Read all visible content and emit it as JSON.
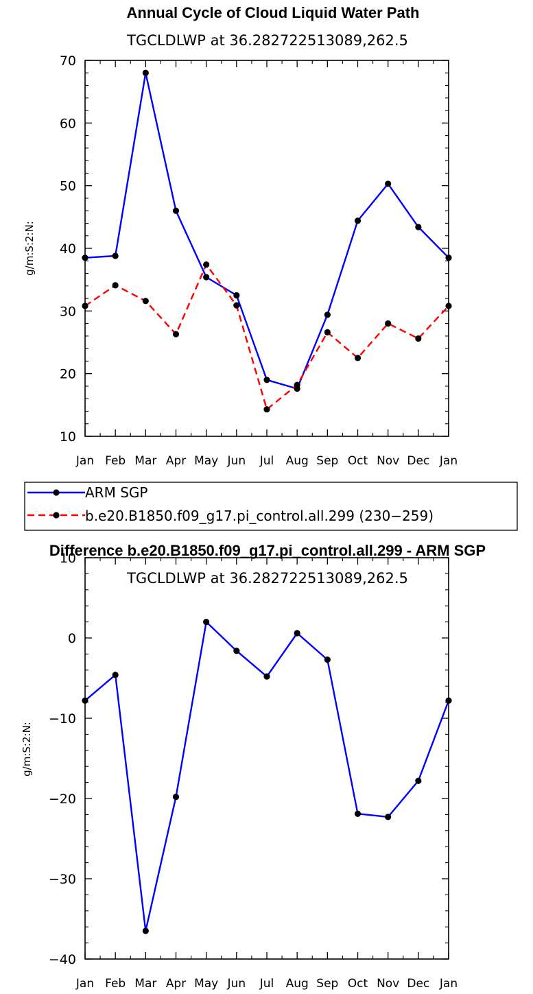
{
  "chart_data": [
    {
      "type": "line",
      "title": "Annual Cycle of Cloud Liquid Water Path",
      "subtitle": "TGCLDLWP  at  36.282722513089,262.5",
      "xlabel": "",
      "ylabel": "g/m:S:2:N:",
      "categories": [
        "Jan",
        "Feb",
        "Mar",
        "Apr",
        "May",
        "Jun",
        "Jul",
        "Aug",
        "Sep",
        "Oct",
        "Nov",
        "Dec",
        "Jan"
      ],
      "ylim": [
        10,
        70
      ],
      "yticks": [
        "10",
        "20",
        "30",
        "40",
        "50",
        "60",
        "70"
      ],
      "series": [
        {
          "name": "ARM SGP",
          "color": "#0000ff",
          "dash": "solid",
          "values": [
            38.5,
            38.8,
            68.0,
            46.0,
            35.4,
            32.5,
            19.0,
            17.6,
            29.4,
            44.4,
            50.3,
            43.4,
            38.5
          ]
        },
        {
          "name": "b.e20.B1850.f09_g17.pi_control.all.299 (230−259)",
          "color": "#ff0000",
          "dash": "dashed",
          "values": [
            30.8,
            34.1,
            31.6,
            26.3,
            37.4,
            30.9,
            14.3,
            18.2,
            26.6,
            22.5,
            28.0,
            25.6,
            30.8
          ]
        }
      ]
    },
    {
      "type": "line",
      "title": "Difference b.e20.B1850.f09_g17.pi_control.all.299 - ARM SGP",
      "subtitle": "TGCLDLWP  at  36.282722513089,262.5",
      "xlabel": "",
      "ylabel": "g/m:S:2:N:",
      "categories": [
        "Jan",
        "Feb",
        "Mar",
        "Apr",
        "May",
        "Jun",
        "Jul",
        "Aug",
        "Sep",
        "Oct",
        "Nov",
        "Dec",
        "Jan"
      ],
      "ylim": [
        -40,
        10
      ],
      "yticks": [
        "−40",
        "−30",
        "−20",
        "−10",
        "0",
        "10"
      ],
      "series": [
        {
          "color": "#0000ff",
          "dash": "solid",
          "values": [
            -7.8,
            -4.6,
            -36.5,
            -19.8,
            2.0,
            -1.6,
            -4.8,
            0.6,
            -2.7,
            -21.9,
            -22.3,
            -17.8,
            -7.8
          ]
        }
      ]
    }
  ]
}
